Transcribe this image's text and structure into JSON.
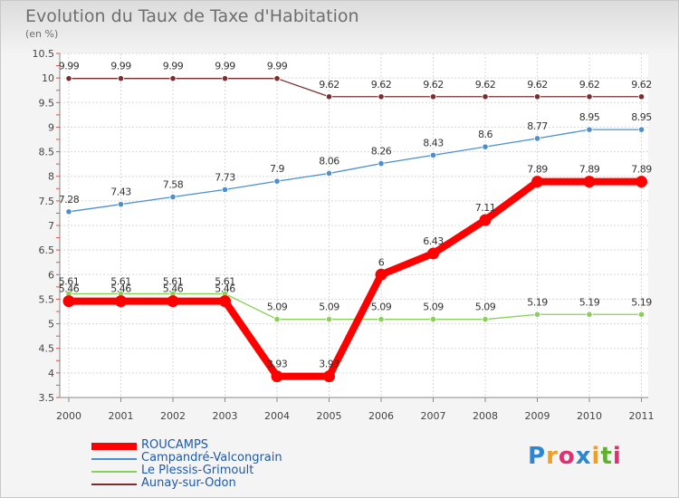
{
  "chart_data": {
    "type": "line",
    "title": "Evolution du Taux de Taxe d'Habitation",
    "subtitle": "(en %)",
    "categories": [
      "2000",
      "2001",
      "2002",
      "2003",
      "2004",
      "2005",
      "2006",
      "2007",
      "2008",
      "2009",
      "2010",
      "2011"
    ],
    "ylim": [
      3.5,
      10.5
    ],
    "yticks": [
      "3.5",
      "4",
      "4.5",
      "5",
      "5.5",
      "6",
      "6.5",
      "7",
      "7.5",
      "8",
      "8.5",
      "9",
      "9.5",
      "10",
      "10.5"
    ],
    "grid": true,
    "legend_position": "bottom-left",
    "series": [
      {
        "name": "ROUCAMPS",
        "color": "#ff0000",
        "values": [
          5.46,
          5.46,
          5.46,
          5.46,
          3.93,
          3.93,
          6,
          6.43,
          7.11,
          7.89,
          7.89,
          7.89
        ],
        "labels": [
          "5.46",
          "5.46",
          "5.46",
          "5.46",
          "3.93",
          "3.93",
          "6",
          "6.43",
          "7.11",
          "7.89",
          "7.89",
          "7.89"
        ]
      },
      {
        "name": "Campandré-Valcongrain",
        "color": "#4a90d0",
        "values": [
          7.28,
          7.43,
          7.58,
          7.73,
          7.9,
          8.06,
          8.26,
          8.43,
          8.6,
          8.77,
          8.95,
          8.95
        ],
        "labels": [
          "7.28",
          "7.43",
          "7.58",
          "7.73",
          "7.9",
          "8.06",
          "8.26",
          "8.43",
          "8.6",
          "8.77",
          "8.95",
          "8.95"
        ]
      },
      {
        "name": "Le Plessis-Grimoult",
        "color": "#88d058",
        "values": [
          5.61,
          5.61,
          5.61,
          5.61,
          5.09,
          5.09,
          5.09,
          5.09,
          5.09,
          5.19,
          5.19,
          5.19
        ],
        "labels": [
          "5.61",
          "5.61",
          "5.61",
          "5.61",
          "5.09",
          "5.09",
          "5.09",
          "5.09",
          "5.09",
          "5.19",
          "5.19",
          "5.19"
        ]
      },
      {
        "name": "Aunay-sur-Odon",
        "color": "#7a2e2e",
        "values": [
          9.99,
          9.99,
          9.99,
          9.99,
          9.99,
          9.62,
          9.62,
          9.62,
          9.62,
          9.62,
          9.62,
          9.62
        ],
        "labels": [
          "9.99",
          "9.99",
          "9.99",
          "9.99",
          "9.99",
          "9.62",
          "9.62",
          "9.62",
          "9.62",
          "9.62",
          "9.62",
          "9.62"
        ]
      }
    ]
  },
  "logo": {
    "letters": [
      "P",
      "r",
      "o",
      "x",
      "i",
      "t",
      "i"
    ],
    "colors": [
      "#2e86d0",
      "#f0a020",
      "#e03070",
      "#2e86d0",
      "#f0a020",
      "#60b030",
      "#e03070"
    ]
  }
}
